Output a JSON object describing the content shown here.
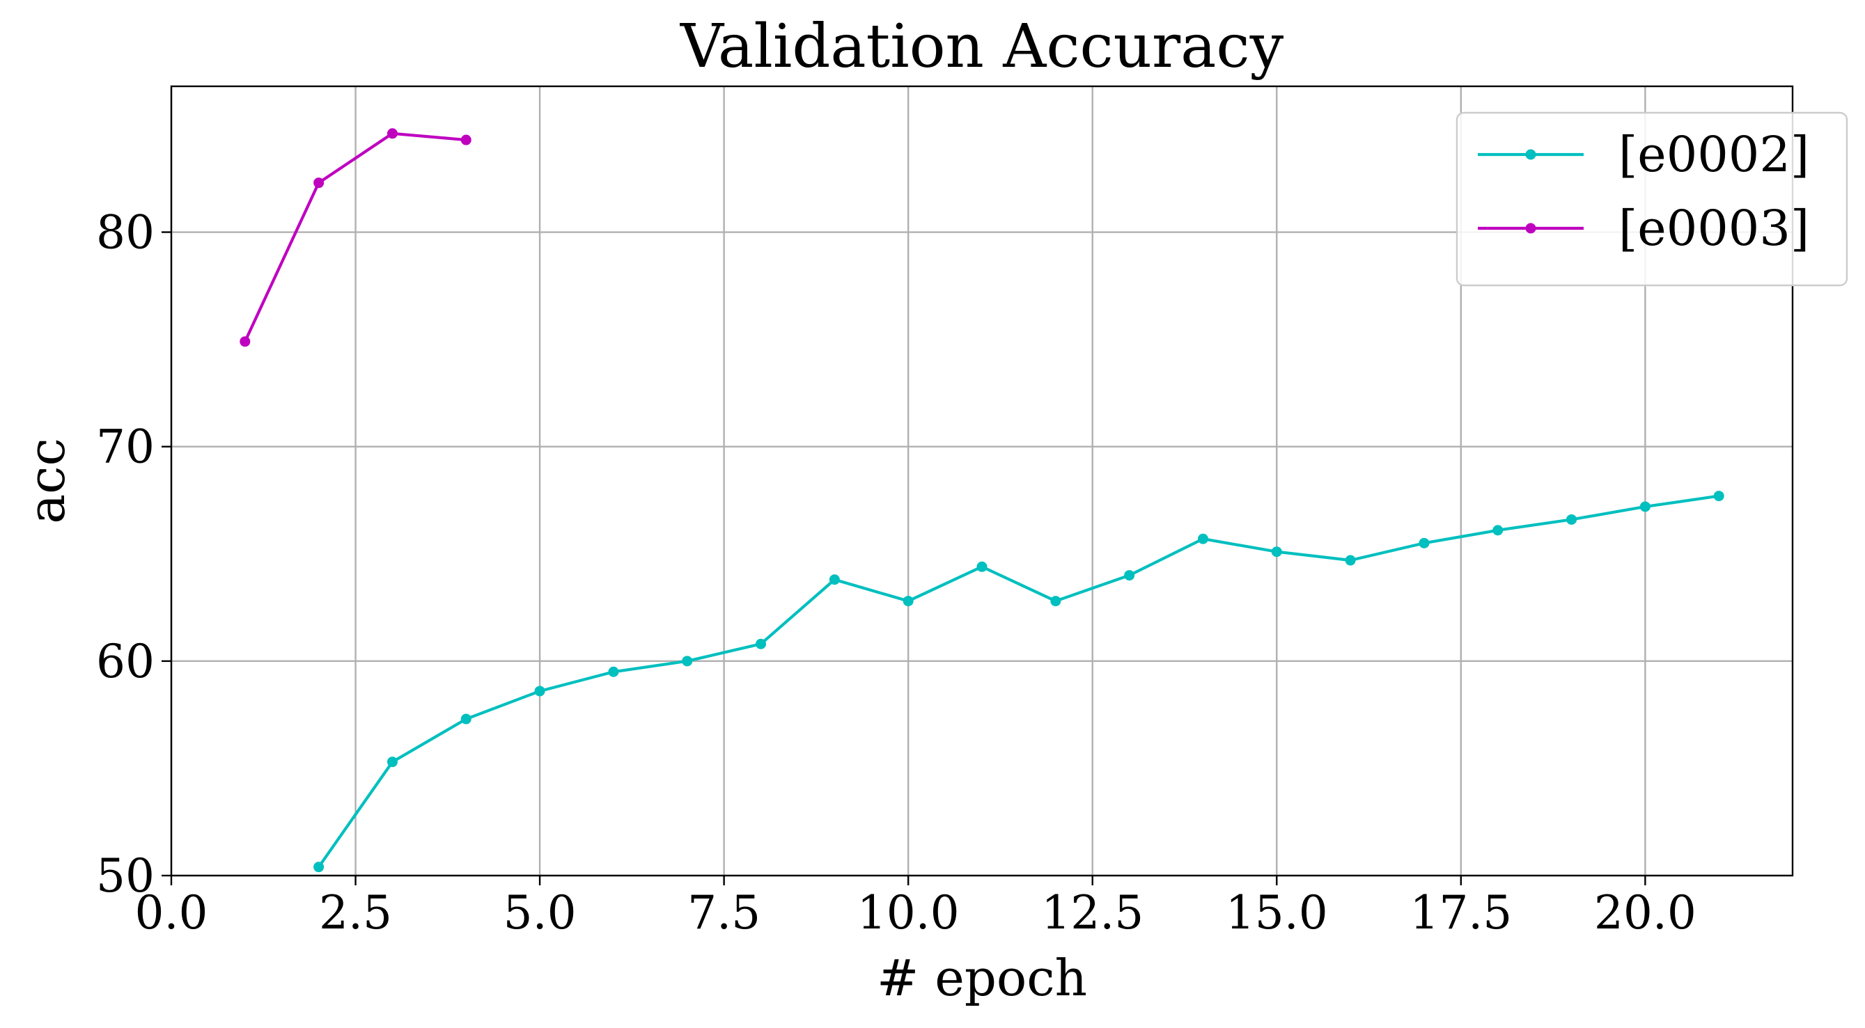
{
  "chart_data": {
    "type": "line",
    "title": "Validation Accuracy",
    "xlabel": "# epoch",
    "ylabel": "acc",
    "xlim": [
      0,
      22
    ],
    "ylim": [
      50,
      86.8
    ],
    "x_ticks": [
      0.0,
      2.5,
      5.0,
      7.5,
      10.0,
      12.5,
      15.0,
      17.5,
      20.0
    ],
    "x_tick_labels": [
      "0.0",
      "2.5",
      "5.0",
      "7.5",
      "10.0",
      "12.5",
      "15.0",
      "17.5",
      "20.0"
    ],
    "y_ticks": [
      50,
      60,
      70,
      80
    ],
    "y_tick_labels": [
      "50",
      "60",
      "70",
      "80"
    ],
    "grid": true,
    "legend_position": "top-right",
    "series": [
      {
        "name": "[e0002]",
        "color": "#00bfbf",
        "marker": "circle",
        "x": [
          2,
          3,
          4,
          5,
          6,
          7,
          8,
          9,
          10,
          11,
          12,
          13,
          14,
          15,
          16,
          17,
          18,
          19,
          20,
          21
        ],
        "y": [
          50.4,
          55.3,
          57.3,
          58.6,
          59.5,
          60.0,
          60.8,
          63.8,
          62.8,
          64.4,
          62.8,
          64.0,
          65.7,
          65.1,
          64.7,
          65.5,
          66.1,
          66.6,
          67.2,
          67.7
        ]
      },
      {
        "name": "[e0003]",
        "color": "#bf00bf",
        "marker": "circle",
        "x": [
          1,
          2,
          3,
          4
        ],
        "y": [
          74.9,
          82.3,
          84.6,
          84.3
        ]
      }
    ]
  }
}
